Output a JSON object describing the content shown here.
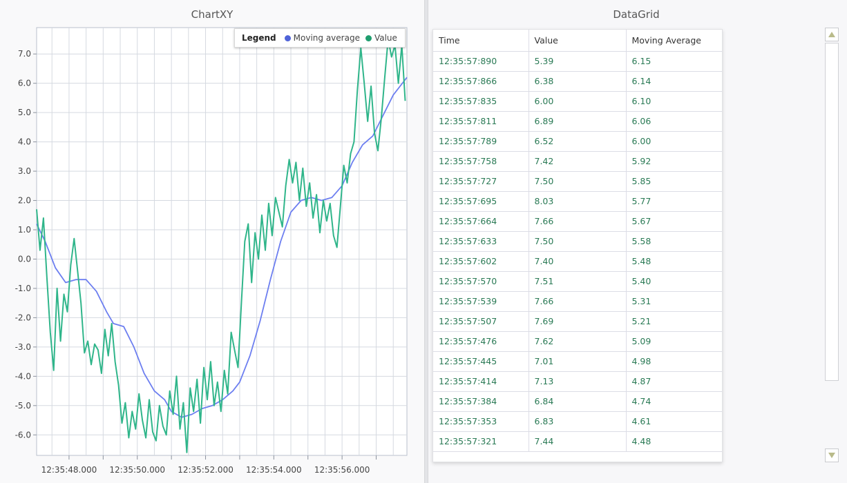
{
  "chart_panel": {
    "title": "ChartXY"
  },
  "grid_panel": {
    "title": "DataGrid"
  },
  "legend": {
    "title": "Legend",
    "items": [
      {
        "label": "Moving average",
        "color": "#4f63d8"
      },
      {
        "label": "Value",
        "color": "#1f9d6e"
      }
    ]
  },
  "chart_data": {
    "type": "line",
    "title": "ChartXY",
    "xlabel": "",
    "ylabel": "",
    "x_unit": "seconds after 12:35:47.000",
    "x_ticks": [
      "12:35:48.000",
      "12:35:50.000",
      "12:35:52.000",
      "12:35:54.000",
      "12:35:56.000"
    ],
    "y_ticks": [
      "7.0",
      "6.0",
      "5.0",
      "4.0",
      "3.0",
      "2.0",
      "1.0",
      "0.0",
      "-1.0",
      "-2.0",
      "-3.0",
      "-4.0",
      "-5.0",
      "-6.0"
    ],
    "xlim": [
      47.05,
      57.9
    ],
    "ylim": [
      -6.7,
      7.9
    ],
    "grid": true,
    "legend_position": "top-right",
    "series": [
      {
        "name": "Moving average",
        "color": "#6c7ef0",
        "x": [
          47.05,
          47.3,
          47.6,
          47.9,
          48.2,
          48.5,
          48.8,
          49.1,
          49.3,
          49.6,
          49.9,
          50.2,
          50.5,
          50.8,
          51.0,
          51.3,
          51.6,
          51.9,
          52.2,
          52.5,
          52.8,
          53.0,
          53.3,
          53.6,
          53.9,
          54.2,
          54.5,
          54.8,
          55.1,
          55.4,
          55.7,
          56.0,
          56.3,
          56.6,
          56.9,
          57.2,
          57.5,
          57.9
        ],
        "y": [
          1.2,
          0.6,
          -0.3,
          -0.8,
          -0.7,
          -0.7,
          -1.1,
          -1.8,
          -2.2,
          -2.3,
          -3.0,
          -3.9,
          -4.5,
          -4.8,
          -5.2,
          -5.4,
          -5.3,
          -5.1,
          -5.0,
          -4.8,
          -4.5,
          -4.2,
          -3.3,
          -2.1,
          -0.7,
          0.6,
          1.6,
          2.0,
          2.1,
          2.0,
          2.1,
          2.5,
          3.3,
          3.9,
          4.2,
          4.9,
          5.6,
          6.2
        ]
      },
      {
        "name": "Value",
        "color": "#2fb58a",
        "x": [
          47.05,
          47.15,
          47.25,
          47.35,
          47.45,
          47.55,
          47.65,
          47.75,
          47.85,
          47.95,
          48.05,
          48.15,
          48.25,
          48.35,
          48.45,
          48.55,
          48.65,
          48.75,
          48.85,
          48.95,
          49.05,
          49.15,
          49.25,
          49.35,
          49.45,
          49.55,
          49.65,
          49.75,
          49.85,
          49.95,
          50.05,
          50.15,
          50.25,
          50.35,
          50.45,
          50.55,
          50.65,
          50.75,
          50.85,
          50.95,
          51.05,
          51.15,
          51.25,
          51.35,
          51.45,
          51.55,
          51.65,
          51.75,
          51.85,
          51.95,
          52.05,
          52.15,
          52.25,
          52.35,
          52.45,
          52.55,
          52.65,
          52.75,
          52.85,
          52.95,
          53.05,
          53.15,
          53.25,
          53.35,
          53.45,
          53.55,
          53.65,
          53.75,
          53.85,
          53.95,
          54.05,
          54.15,
          54.25,
          54.35,
          54.45,
          54.55,
          54.65,
          54.75,
          54.85,
          54.95,
          55.05,
          55.15,
          55.25,
          55.35,
          55.45,
          55.55,
          55.65,
          55.75,
          55.85,
          55.95,
          56.05,
          56.15,
          56.25,
          56.35,
          56.45,
          56.55,
          56.65,
          56.75,
          56.85,
          56.95,
          57.05,
          57.15,
          57.25,
          57.35,
          57.45,
          57.55,
          57.65,
          57.75,
          57.85
        ],
        "y": [
          1.7,
          0.3,
          1.4,
          -0.6,
          -2.5,
          -3.8,
          -1.0,
          -2.8,
          -1.2,
          -1.8,
          -0.2,
          0.7,
          -0.4,
          -1.5,
          -3.2,
          -2.8,
          -3.6,
          -2.9,
          -3.1,
          -3.9,
          -2.4,
          -3.3,
          -2.2,
          -3.5,
          -4.3,
          -5.6,
          -4.9,
          -6.1,
          -5.2,
          -5.8,
          -4.6,
          -5.5,
          -6.1,
          -4.8,
          -5.9,
          -6.2,
          -5.0,
          -5.7,
          -6.0,
          -4.5,
          -5.3,
          -4.0,
          -5.8,
          -4.9,
          -6.6,
          -4.4,
          -5.2,
          -4.1,
          -5.6,
          -3.7,
          -4.8,
          -3.5,
          -5.0,
          -4.2,
          -5.2,
          -3.8,
          -4.6,
          -2.5,
          -3.1,
          -3.7,
          -1.5,
          0.6,
          1.2,
          -0.8,
          0.9,
          0.0,
          1.5,
          0.3,
          1.9,
          0.8,
          2.1,
          1.6,
          1.1,
          2.5,
          3.4,
          2.6,
          3.3,
          2.0,
          3.1,
          1.8,
          2.6,
          1.4,
          2.2,
          0.9,
          2.0,
          1.3,
          1.9,
          0.8,
          0.4,
          1.8,
          3.2,
          2.6,
          3.6,
          4.0,
          5.8,
          7.2,
          6.0,
          4.7,
          5.9,
          4.3,
          3.7,
          4.8,
          6.2,
          7.5,
          6.9,
          7.3,
          6.0,
          7.3,
          5.4
        ]
      }
    ]
  },
  "table": {
    "columns": [
      "Time",
      "Value",
      "Moving Average"
    ],
    "rows": [
      [
        "12:35:57:890",
        "5.39",
        "6.15"
      ],
      [
        "12:35:57:866",
        "6.38",
        "6.14"
      ],
      [
        "12:35:57:835",
        "6.00",
        "6.10"
      ],
      [
        "12:35:57:811",
        "6.89",
        "6.06"
      ],
      [
        "12:35:57:789",
        "6.52",
        "6.00"
      ],
      [
        "12:35:57:758",
        "7.42",
        "5.92"
      ],
      [
        "12:35:57:727",
        "7.50",
        "5.85"
      ],
      [
        "12:35:57:695",
        "8.03",
        "5.77"
      ],
      [
        "12:35:57:664",
        "7.66",
        "5.67"
      ],
      [
        "12:35:57:633",
        "7.50",
        "5.58"
      ],
      [
        "12:35:57:602",
        "7.40",
        "5.48"
      ],
      [
        "12:35:57:570",
        "7.51",
        "5.40"
      ],
      [
        "12:35:57:539",
        "7.66",
        "5.31"
      ],
      [
        "12:35:57:507",
        "7.69",
        "5.21"
      ],
      [
        "12:35:57:476",
        "7.62",
        "5.09"
      ],
      [
        "12:35:57:445",
        "7.01",
        "4.98"
      ],
      [
        "12:35:57:414",
        "7.13",
        "4.87"
      ],
      [
        "12:35:57:384",
        "6.84",
        "4.74"
      ],
      [
        "12:35:57:353",
        "6.83",
        "4.61"
      ],
      [
        "12:35:57:321",
        "7.44",
        "4.48"
      ]
    ]
  },
  "scrollbar": {
    "up_icon": "triangle-up-icon",
    "down_icon": "triangle-down-icon"
  }
}
